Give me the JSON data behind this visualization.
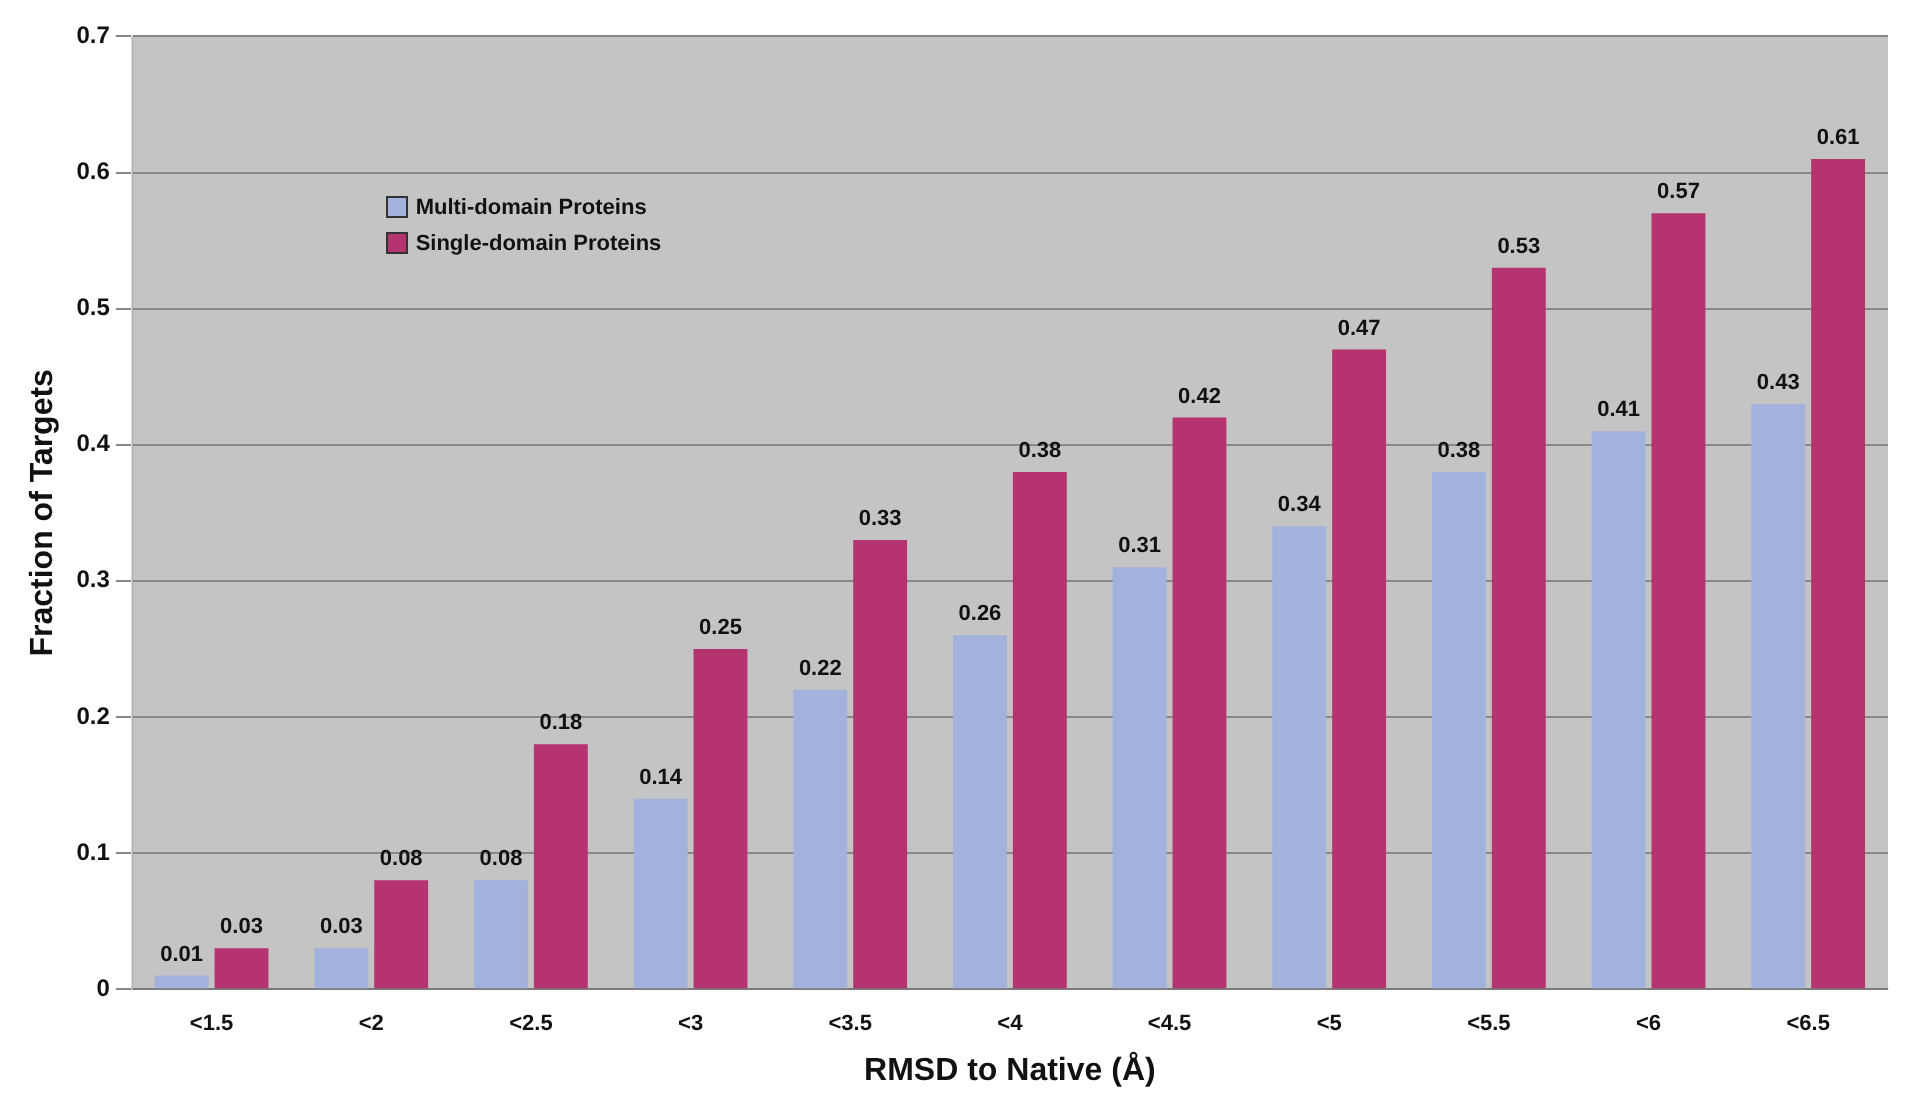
{
  "chart_data": {
    "type": "bar",
    "xlabel": "RMSD to Native (Å)",
    "ylabel": "Fraction of Targets",
    "categories": [
      "<1.5",
      "<2",
      "<2.5",
      "<3",
      "<3.5",
      "<4",
      "<4.5",
      "<5",
      "<5.5",
      "<6",
      "<6.5"
    ],
    "series": [
      {
        "name": "Multi-domain Proteins",
        "color": "#a3b2dc",
        "values": [
          0.01,
          0.03,
          0.08,
          0.14,
          0.22,
          0.26,
          0.31,
          0.34,
          0.38,
          0.41,
          0.43
        ]
      },
      {
        "name": "Single-domain Proteins",
        "color": "#b5336f",
        "values": [
          0.03,
          0.08,
          0.18,
          0.25,
          0.33,
          0.38,
          0.42,
          0.47,
          0.53,
          0.57,
          0.61
        ]
      }
    ],
    "ylim": [
      0,
      0.7
    ],
    "yticks": [
      0,
      0.1,
      0.2,
      0.3,
      0.4,
      0.5,
      0.6,
      0.7
    ],
    "grid": "y",
    "legend": "top left",
    "data_labels": true
  }
}
